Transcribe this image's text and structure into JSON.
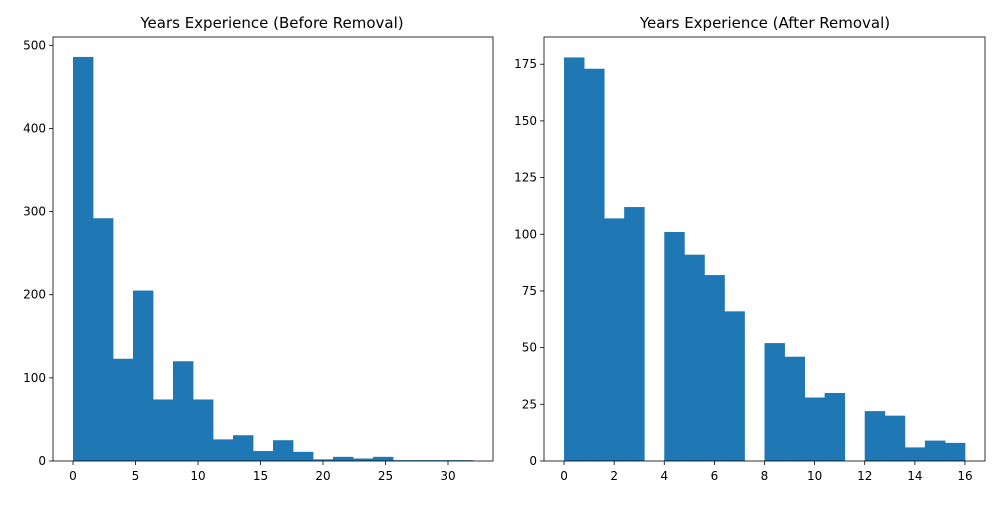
{
  "colors": {
    "bar": "#1f77b4",
    "axis": "#000000",
    "background": "#ffffff"
  },
  "chart_data": [
    {
      "type": "histogram",
      "title": "Years Experience (Before Removal)",
      "xlabel": "",
      "ylabel": "",
      "xlim": [
        -1.6,
        33.6
      ],
      "ylim": [
        0,
        510
      ],
      "xticks": [
        0,
        5,
        10,
        15,
        20,
        25,
        30
      ],
      "yticks": [
        0,
        100,
        200,
        300,
        400,
        500
      ],
      "grid": false,
      "bin_edges": [
        0,
        1.6,
        3.2,
        4.8,
        6.4,
        8.0,
        9.6,
        11.2,
        12.8,
        14.4,
        16.0,
        17.6,
        19.2,
        20.8,
        22.4,
        24.0,
        25.6,
        27.2,
        28.8,
        30.4,
        32.0
      ],
      "values": [
        486,
        292,
        123,
        205,
        74,
        120,
        74,
        26,
        31,
        12,
        25,
        11,
        2,
        5,
        3,
        5,
        1,
        1,
        1,
        1
      ]
    },
    {
      "type": "histogram",
      "title": "Years Experience (After Removal)",
      "xlabel": "",
      "ylabel": "",
      "xlim": [
        -0.8,
        16.8
      ],
      "ylim": [
        0,
        187
      ],
      "xticks": [
        0,
        2,
        4,
        6,
        8,
        10,
        12,
        14,
        16
      ],
      "yticks": [
        0,
        25,
        50,
        75,
        100,
        125,
        150,
        175
      ],
      "grid": false,
      "bin_edges": [
        0,
        0.8,
        1.6,
        2.4,
        3.2,
        4.0,
        4.8,
        5.6,
        6.4,
        7.2,
        8.0,
        8.8,
        9.6,
        10.4,
        11.2,
        12.0,
        12.8,
        13.6,
        14.4,
        15.2,
        16.0
      ],
      "values": [
        178,
        173,
        107,
        112,
        0,
        101,
        91,
        82,
        66,
        0,
        52,
        46,
        28,
        30,
        0,
        22,
        20,
        6,
        9,
        8
      ]
    }
  ]
}
